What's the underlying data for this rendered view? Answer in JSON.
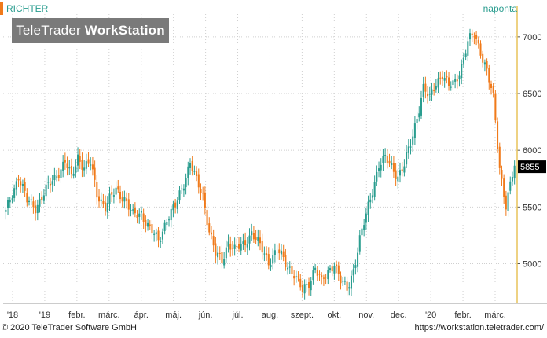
{
  "header": {
    "symbol": "RICHTER",
    "period": "naponta",
    "watermark_brand": "TeleTrader",
    "watermark_product": "WorkStation"
  },
  "footer": {
    "copyright": "© 2020 TeleTrader Software GmbH",
    "url": "https://workstation.teletrader.com/"
  },
  "colors": {
    "up": "#2a9d8f",
    "down": "#f07a1a",
    "grid": "#cfcfcf",
    "axis_line": "#e8c45a",
    "last_price_bg": "#000000"
  },
  "chart_data": {
    "type": "candlestick",
    "title": "",
    "ylim": [
      4650,
      7200
    ],
    "y_ticks": [
      5000,
      5500,
      6000,
      6500,
      7000
    ],
    "x_ticks": [
      "'18",
      "'19",
      "febr.",
      "márc.",
      "ápr.",
      "máj.",
      "jún.",
      "júl.",
      "aug.",
      "szept.",
      "okt.",
      "nov.",
      "dec.",
      "'20",
      "febr.",
      "márc."
    ],
    "last_price": 5855,
    "grid": true,
    "series_anchors": [
      [
        0,
        5450
      ],
      [
        6,
        5780
      ],
      [
        10,
        5550
      ],
      [
        14,
        5500
      ],
      [
        19,
        5650
      ],
      [
        23,
        5760
      ],
      [
        28,
        5900
      ],
      [
        31,
        5750
      ],
      [
        34,
        5950
      ],
      [
        37,
        5850
      ],
      [
        40,
        5880
      ],
      [
        43,
        5620
      ],
      [
        47,
        5500
      ],
      [
        52,
        5650
      ],
      [
        56,
        5580
      ],
      [
        60,
        5420
      ],
      [
        64,
        5450
      ],
      [
        68,
        5300
      ],
      [
        72,
        5200
      ],
      [
        76,
        5400
      ],
      [
        80,
        5500
      ],
      [
        84,
        5720
      ],
      [
        87,
        5900
      ],
      [
        90,
        5720
      ],
      [
        93,
        5600
      ],
      [
        96,
        5300
      ],
      [
        99,
        5080
      ],
      [
        102,
        5020
      ],
      [
        105,
        5200
      ],
      [
        108,
        5120
      ],
      [
        112,
        5160
      ],
      [
        116,
        5280
      ],
      [
        120,
        5150
      ],
      [
        124,
        5020
      ],
      [
        128,
        5120
      ],
      [
        132,
        5000
      ],
      [
        136,
        4920
      ],
      [
        140,
        4750
      ],
      [
        143,
        4830
      ],
      [
        146,
        4980
      ],
      [
        149,
        4830
      ],
      [
        152,
        4920
      ],
      [
        155,
        5020
      ],
      [
        158,
        4850
      ],
      [
        161,
        4760
      ],
      [
        164,
        4950
      ],
      [
        167,
        5220
      ],
      [
        170,
        5420
      ],
      [
        173,
        5650
      ],
      [
        176,
        5880
      ],
      [
        179,
        5920
      ],
      [
        182,
        5850
      ],
      [
        185,
        5780
      ],
      [
        188,
        5870
      ],
      [
        191,
        6050
      ],
      [
        194,
        6300
      ],
      [
        197,
        6550
      ],
      [
        200,
        6450
      ],
      [
        203,
        6600
      ],
      [
        206,
        6680
      ],
      [
        209,
        6550
      ],
      [
        212,
        6600
      ],
      [
        215,
        6750
      ],
      [
        218,
        6950
      ],
      [
        221,
        7020
      ],
      [
        224,
        6880
      ],
      [
        227,
        6700
      ],
      [
        230,
        6450
      ],
      [
        233,
        5850
      ],
      [
        236,
        5520
      ],
      [
        240,
        5855
      ]
    ]
  }
}
